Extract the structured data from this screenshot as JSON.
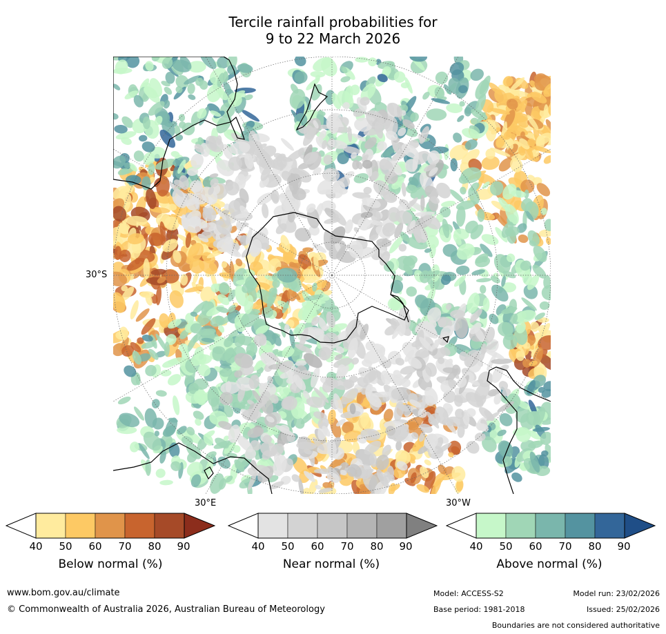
{
  "title_line1": "Tercile rainfall probabilities for",
  "title_line2": "9 to 22 March 2026",
  "map": {
    "lat_label": "30°S",
    "lon_label_east": "30°E",
    "lon_label_west": "30°W",
    "colors": {
      "land_outline": "#000000",
      "gridline": "#666666",
      "below": [
        "#ffeb9e",
        "#fdc964",
        "#e0944a",
        "#c8642e",
        "#a64a28",
        "#8c2d1c"
      ],
      "near": [
        "#e3e3e3",
        "#d3d3d3",
        "#c6c6c6",
        "#b4b4b4",
        "#a0a0a0",
        "#808080"
      ],
      "above": [
        "#c6f7c9",
        "#a0d6b6",
        "#7ab6ac",
        "#5493a0",
        "#336699",
        "#1f4e87"
      ]
    }
  },
  "legend": {
    "ticks": [
      "40",
      "50",
      "60",
      "70",
      "80",
      "90"
    ],
    "below_title": "Below normal (%)",
    "near_title": "Near normal (%)",
    "above_title": "Above normal (%)"
  },
  "footer": {
    "website": "www.bom.gov.au/climate",
    "copyright": "© Commonwealth of Australia 2026, Australian Bureau of Meteorology",
    "model": "Model: ACCESS-S2",
    "model_run": "Model run: 23/02/2026",
    "base_period": "Base period: 1981-2018",
    "issued": "Issued: 25/02/2026",
    "disclaimer": "Boundaries are not considered authoritative"
  }
}
